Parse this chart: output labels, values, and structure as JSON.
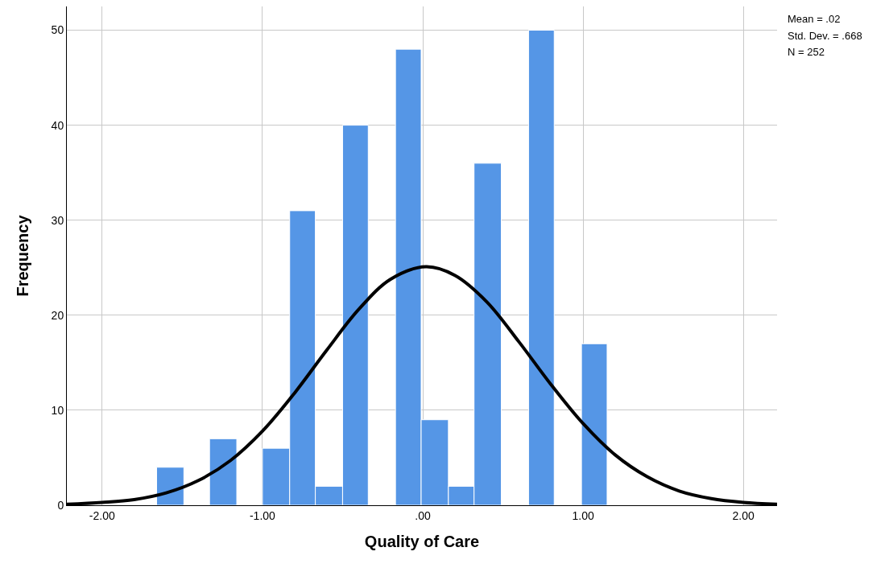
{
  "chart_data": {
    "type": "histogram",
    "xlabel": "Quality of Care",
    "ylabel": "Frequency",
    "bins": [
      -1.66,
      -1.49,
      -1.33,
      -1.16,
      -1.0,
      -0.83,
      -0.67,
      -0.5,
      -0.34,
      -0.17,
      -0.01,
      0.16,
      0.32,
      0.49,
      0.66,
      0.82,
      0.99,
      1.15
    ],
    "values": [
      4,
      0,
      7,
      0,
      6,
      31,
      2,
      40,
      0,
      48,
      9,
      2,
      36,
      0,
      50,
      0,
      17
    ],
    "color": "#5596e6",
    "series": [
      {
        "type": "line",
        "color": "#000000",
        "x": [
          -2.22,
          -2.0,
          -1.8,
          -1.6,
          -1.4,
          -1.2,
          -1.0,
          -0.8,
          -0.6,
          -0.4,
          -0.2,
          0.02,
          0.2,
          0.4,
          0.6,
          0.8,
          1.0,
          1.2,
          1.4,
          1.6,
          1.8,
          2.0,
          2.21
        ],
        "values": [
          0.1,
          0.3,
          0.6,
          1.3,
          2.6,
          4.7,
          7.8,
          11.8,
          16.3,
          20.6,
          23.8,
          25.1,
          24.2,
          21.4,
          17.2,
          12.7,
          8.6,
          5.3,
          3.0,
          1.5,
          0.7,
          0.3,
          0.1
        ]
      }
    ],
    "xlim": [
      -2.22,
      2.21
    ],
    "xticks": [
      {
        "value": -2,
        "label": "-2.00"
      },
      {
        "value": -1,
        "label": "-1.00"
      },
      {
        "value": 0,
        "label": ".00"
      },
      {
        "value": 1,
        "label": "1.00"
      },
      {
        "value": 2,
        "label": "2.00"
      }
    ],
    "ylim": [
      0,
      52.5
    ],
    "yticks": [
      0,
      10,
      20,
      30,
      40,
      50
    ],
    "grid": true,
    "marker": "none",
    "line_style": "solid",
    "annotations": [
      "Mean = .02",
      "Std. Dev. = .668",
      "N = 252"
    ]
  }
}
